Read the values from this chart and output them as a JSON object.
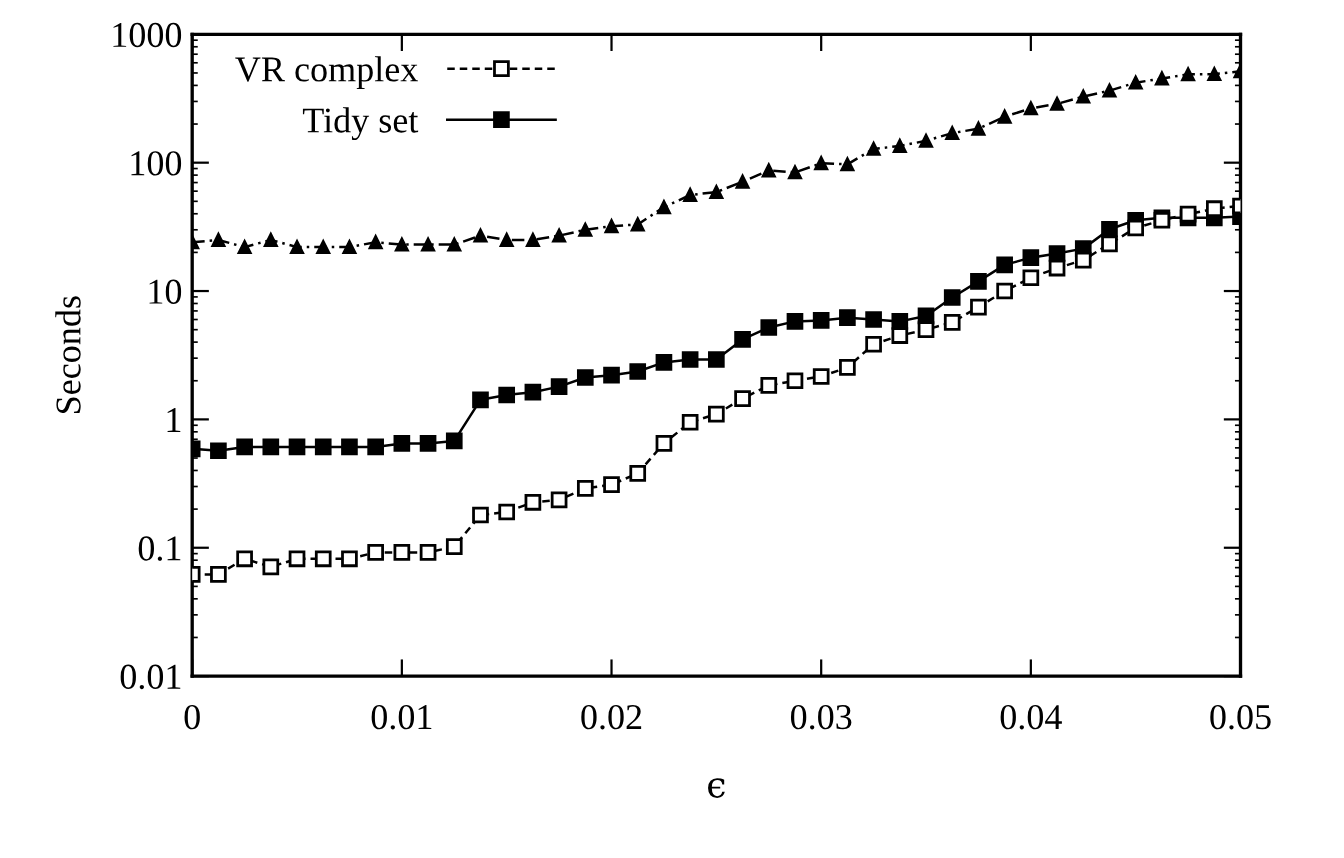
{
  "chart_data": {
    "type": "line",
    "xlabel": "ϵ",
    "ylabel": "Seconds",
    "x": [
      0,
      0.00125,
      0.0025,
      0.00375,
      0.005,
      0.00625,
      0.0075,
      0.00875,
      0.01,
      0.01125,
      0.0125,
      0.01375,
      0.015,
      0.01625,
      0.0175,
      0.01875,
      0.02,
      0.02125,
      0.0225,
      0.02375,
      0.025,
      0.02625,
      0.0275,
      0.02875,
      0.03,
      0.03125,
      0.0325,
      0.03375,
      0.035,
      0.03625,
      0.0375,
      0.03875,
      0.04,
      0.04125,
      0.0425,
      0.04375,
      0.045,
      0.04625,
      0.0475,
      0.04875,
      0.05
    ],
    "series": [
      {
        "color": "#000000",
        "marker": "triangle",
        "line_style": "dashdot",
        "values": [
          24,
          25,
          22,
          25,
          22,
          22,
          22,
          24,
          23,
          23,
          23,
          27,
          25,
          25,
          27,
          30,
          32,
          33,
          45,
          56,
          59,
          71,
          87,
          84,
          99,
          97,
          128,
          135,
          148,
          170,
          184,
          228,
          265,
          287,
          327,
          364,
          420,
          453,
          488,
          490,
          515
        ]
      },
      {
        "name": "VR complex",
        "color": "#000000",
        "marker": "square",
        "line_style": "dashed",
        "values": [
          0.062,
          0.062,
          0.082,
          0.071,
          0.082,
          0.082,
          0.082,
          0.092,
          0.092,
          0.092,
          0.102,
          0.18,
          0.19,
          0.226,
          0.236,
          0.29,
          0.31,
          0.38,
          0.65,
          0.95,
          1.1,
          1.45,
          1.84,
          2.0,
          2.16,
          2.54,
          3.85,
          4.5,
          5.0,
          5.7,
          7.5,
          10,
          12.7,
          15.1,
          17.4,
          23.3,
          31,
          35.6,
          39.7,
          43.8,
          46
        ]
      },
      {
        "name": "Tidy set",
        "color": "#000000",
        "marker": "square",
        "line_style": "solid",
        "values": [
          0.59,
          0.57,
          0.61,
          0.61,
          0.61,
          0.61,
          0.61,
          0.61,
          0.65,
          0.65,
          0.68,
          1.42,
          1.55,
          1.63,
          1.8,
          2.12,
          2.21,
          2.36,
          2.78,
          2.93,
          2.93,
          4.2,
          5.2,
          5.8,
          5.9,
          6.2,
          6.0,
          5.8,
          6.4,
          8.9,
          11.9,
          16.0,
          18.2,
          19.6,
          21.4,
          30.3,
          35.6,
          37.2,
          37.2,
          37.2,
          38
        ]
      }
    ],
    "log": "y",
    "xlim": [
      0,
      0.05
    ],
    "ylim": [
      0.01,
      1000
    ],
    "xticks": [
      0,
      0.01,
      0.02,
      0.03,
      0.04,
      0.05
    ],
    "yticks": [
      0.01,
      0.1,
      1,
      10,
      100,
      1000
    ],
    "legend": "top left",
    "grid": false
  }
}
